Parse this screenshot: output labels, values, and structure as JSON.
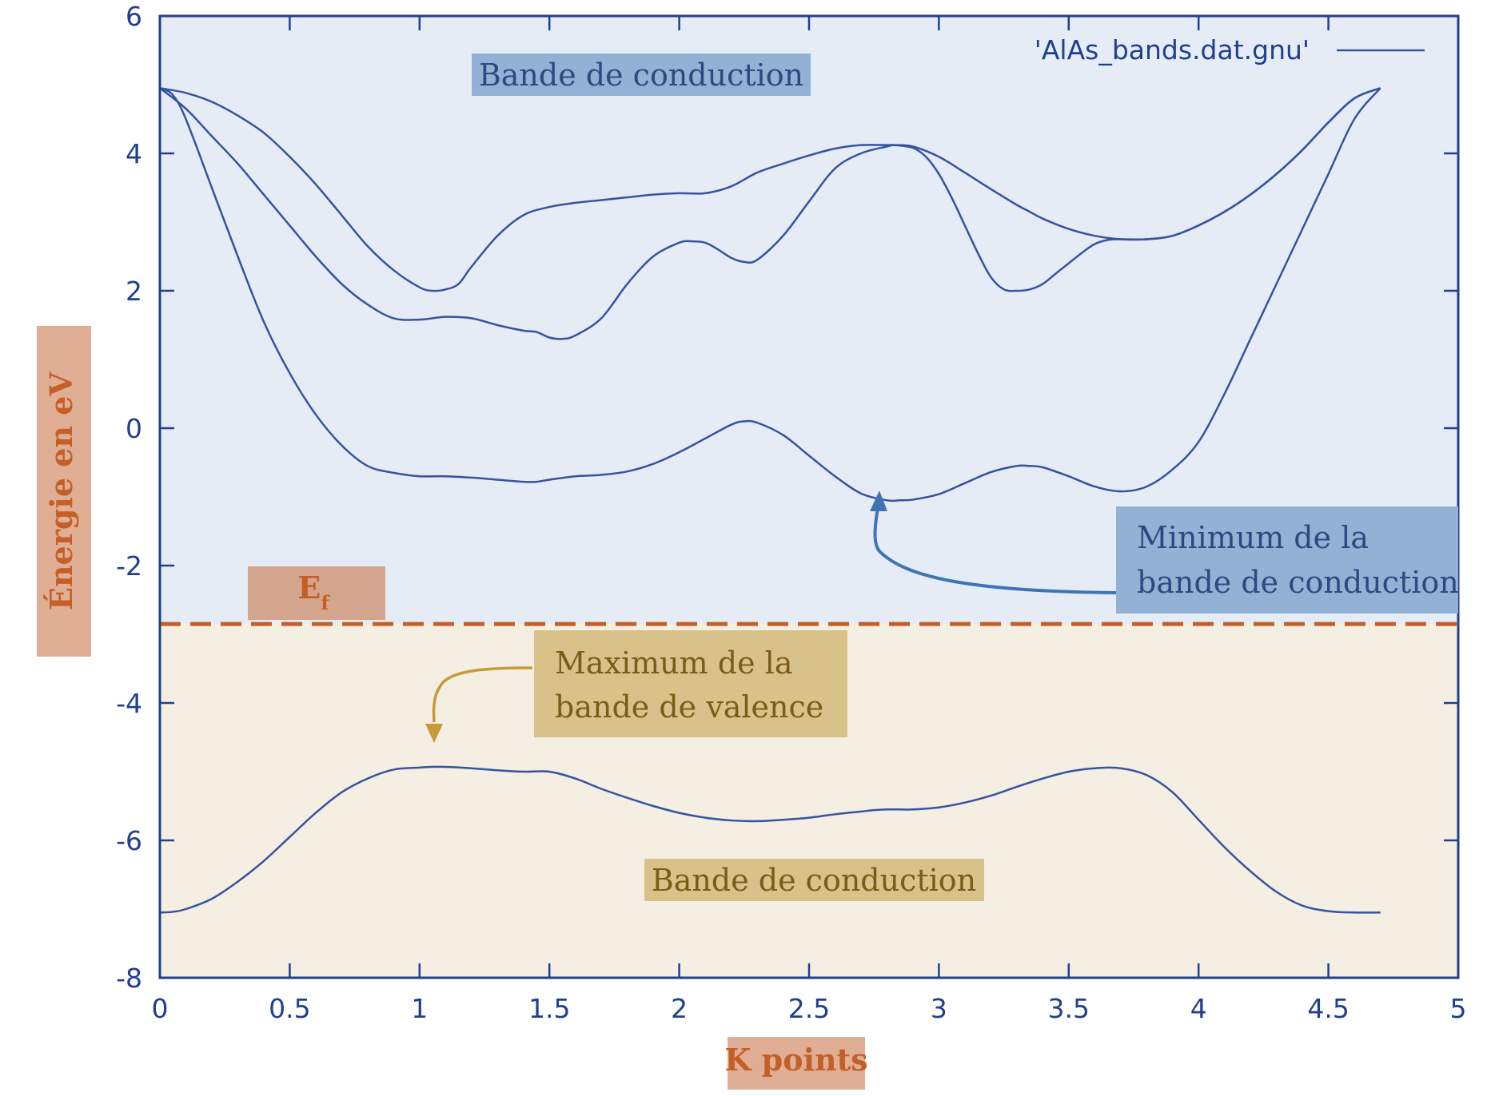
{
  "chart_data": {
    "type": "line",
    "xlabel": "K points",
    "ylabel": "Énergie en eV",
    "xlim": [
      0,
      5
    ],
    "ylim": [
      -8,
      6
    ],
    "xticks": [
      "0",
      "0.5",
      "1",
      "1.5",
      "2",
      "2.5",
      "3",
      "3.5",
      "4",
      "4.5",
      "5"
    ],
    "yticks": [
      "6",
      "4",
      "2",
      "0",
      "-2",
      "-4",
      "-6",
      "-8"
    ],
    "legend": {
      "label": "'AlAs_bands.dat.gnu'",
      "position": "top-right"
    },
    "fermi_level": {
      "label": "E",
      "subscript": "f",
      "value": -2.85
    },
    "colors": {
      "line": "#3553a0",
      "axis": "#1f3f8f",
      "conduction_region": "#e6ecf5",
      "valence_region": "#f5efe3",
      "fermi_line": "#c45f28"
    },
    "annotations": {
      "conduction_top": "Bande de conduction",
      "conduction_min": [
        "Minimum de la",
        "bande de conduction"
      ],
      "valence_max": [
        "Maximum de la",
        "bande de valence"
      ],
      "valence_bottom": "Bande de conduction"
    },
    "series": [
      {
        "x": [
          0,
          0.05,
          0.1,
          0.2,
          0.3,
          0.4,
          0.5,
          0.6,
          0.7,
          0.8,
          0.9,
          1.0,
          1.05,
          1.1,
          1.2,
          1.3,
          1.4,
          1.5,
          1.6,
          1.7,
          1.8,
          1.9,
          2.0,
          2.1,
          2.2,
          2.3,
          2.4,
          2.5,
          2.6,
          2.7,
          2.75,
          2.8,
          2.85,
          2.9,
          3.0,
          3.1,
          3.2,
          3.3,
          3.4,
          3.5,
          3.6,
          3.7,
          3.8,
          3.9,
          4.0,
          4.1,
          4.2,
          4.3,
          4.4,
          4.5,
          4.6,
          4.7
        ],
        "y": [
          -7.05,
          -7.04,
          -7.0,
          -6.85,
          -6.6,
          -6.3,
          -5.95,
          -5.6,
          -5.3,
          -5.1,
          -4.97,
          -4.94,
          -4.93,
          -4.93,
          -4.95,
          -4.98,
          -5.0,
          -5.0,
          -5.1,
          -5.25,
          -5.38,
          -5.5,
          -5.6,
          -5.67,
          -5.71,
          -5.72,
          -5.7,
          -5.67,
          -5.62,
          -5.58,
          -5.56,
          -5.55,
          -5.55,
          -5.55,
          -5.52,
          -5.45,
          -5.35,
          -5.22,
          -5.1,
          -5.0,
          -4.95,
          -4.95,
          -5.05,
          -5.3,
          -5.7,
          -6.1,
          -6.45,
          -6.75,
          -6.95,
          -7.03,
          -7.05,
          -7.05
        ]
      },
      {
        "x": [
          0,
          0.05,
          0.1,
          0.2,
          0.3,
          0.4,
          0.5,
          0.6,
          0.7,
          0.8,
          0.9,
          1.0,
          1.1,
          1.2,
          1.3,
          1.4,
          1.45,
          1.5,
          1.6,
          1.7,
          1.8,
          1.9,
          2.0,
          2.1,
          2.2,
          2.25,
          2.3,
          2.4,
          2.5,
          2.6,
          2.7,
          2.8,
          2.85,
          2.9,
          3.0,
          3.1,
          3.2,
          3.3,
          3.35,
          3.4,
          3.5,
          3.6,
          3.7,
          3.8,
          3.9,
          4.0,
          4.1,
          4.2,
          4.3,
          4.4,
          4.5,
          4.6,
          4.7
        ],
        "y": [
          4.95,
          4.85,
          4.5,
          3.5,
          2.5,
          1.55,
          0.8,
          0.2,
          -0.25,
          -0.55,
          -0.65,
          -0.7,
          -0.7,
          -0.72,
          -0.75,
          -0.78,
          -0.78,
          -0.75,
          -0.7,
          -0.68,
          -0.63,
          -0.52,
          -0.35,
          -0.15,
          0.05,
          0.1,
          0.08,
          -0.1,
          -0.4,
          -0.7,
          -0.95,
          -1.05,
          -1.05,
          -1.04,
          -0.96,
          -0.8,
          -0.64,
          -0.55,
          -0.55,
          -0.57,
          -0.7,
          -0.85,
          -0.92,
          -0.85,
          -0.6,
          -0.2,
          0.5,
          1.3,
          2.1,
          2.9,
          3.7,
          4.5,
          4.95
        ]
      },
      {
        "x": [
          0,
          0.1,
          0.2,
          0.3,
          0.4,
          0.5,
          0.6,
          0.7,
          0.8,
          0.9,
          1.0,
          1.1,
          1.2,
          1.3,
          1.4,
          1.45,
          1.5,
          1.55,
          1.6,
          1.7,
          1.8,
          1.9,
          2.0,
          2.05,
          2.1,
          2.15,
          2.2,
          2.25,
          2.3,
          2.4,
          2.5,
          2.6,
          2.7,
          2.8,
          2.83,
          2.9,
          3.0,
          3.1,
          3.2,
          3.3,
          3.35,
          3.4,
          3.5,
          3.6,
          3.7,
          3.8,
          3.9,
          4.0,
          4.1,
          4.2,
          4.3,
          4.4,
          4.5,
          4.6,
          4.7
        ],
        "y": [
          4.95,
          4.65,
          4.25,
          3.85,
          3.4,
          2.95,
          2.5,
          2.1,
          1.8,
          1.6,
          1.58,
          1.62,
          1.6,
          1.5,
          1.42,
          1.4,
          1.32,
          1.3,
          1.35,
          1.6,
          2.1,
          2.5,
          2.7,
          2.72,
          2.7,
          2.6,
          2.48,
          2.42,
          2.45,
          2.8,
          3.3,
          3.78,
          4.0,
          4.1,
          4.12,
          4.1,
          3.95,
          3.72,
          3.48,
          3.25,
          3.15,
          3.05,
          2.9,
          2.8,
          2.75,
          2.75,
          2.8,
          2.95,
          3.15,
          3.4,
          3.7,
          4.05,
          4.45,
          4.8,
          4.95
        ]
      },
      {
        "x": [
          0,
          0.1,
          0.2,
          0.3,
          0.4,
          0.5,
          0.6,
          0.7,
          0.8,
          0.9,
          1.0,
          1.05,
          1.1,
          1.15,
          1.2,
          1.3,
          1.4,
          1.5,
          1.6,
          1.7,
          1.8,
          1.9,
          2.0,
          2.1,
          2.2,
          2.3,
          2.4,
          2.5,
          2.6,
          2.7,
          2.8,
          2.83,
          2.9,
          2.95,
          3.0,
          3.05,
          3.1,
          3.15,
          3.2,
          3.25,
          3.3,
          3.35,
          3.4,
          3.45,
          3.5,
          3.55,
          3.6,
          3.65,
          3.7,
          3.8,
          3.9,
          4.0,
          4.1,
          4.2,
          4.3,
          4.4,
          4.5,
          4.6,
          4.7
        ],
        "y": [
          4.95,
          4.88,
          4.75,
          4.55,
          4.3,
          3.95,
          3.55,
          3.1,
          2.65,
          2.3,
          2.05,
          2.0,
          2.02,
          2.1,
          2.35,
          2.8,
          3.1,
          3.22,
          3.28,
          3.32,
          3.36,
          3.4,
          3.42,
          3.42,
          3.52,
          3.72,
          3.85,
          3.97,
          4.07,
          4.12,
          4.12,
          4.12,
          4.08,
          3.95,
          3.7,
          3.35,
          2.95,
          2.55,
          2.2,
          2.02,
          2.0,
          2.02,
          2.1,
          2.25,
          2.4,
          2.55,
          2.68,
          2.74,
          2.75,
          2.75,
          2.8,
          2.95,
          3.15,
          3.4,
          3.7,
          4.05,
          4.45,
          4.8,
          4.95
        ]
      }
    ]
  }
}
